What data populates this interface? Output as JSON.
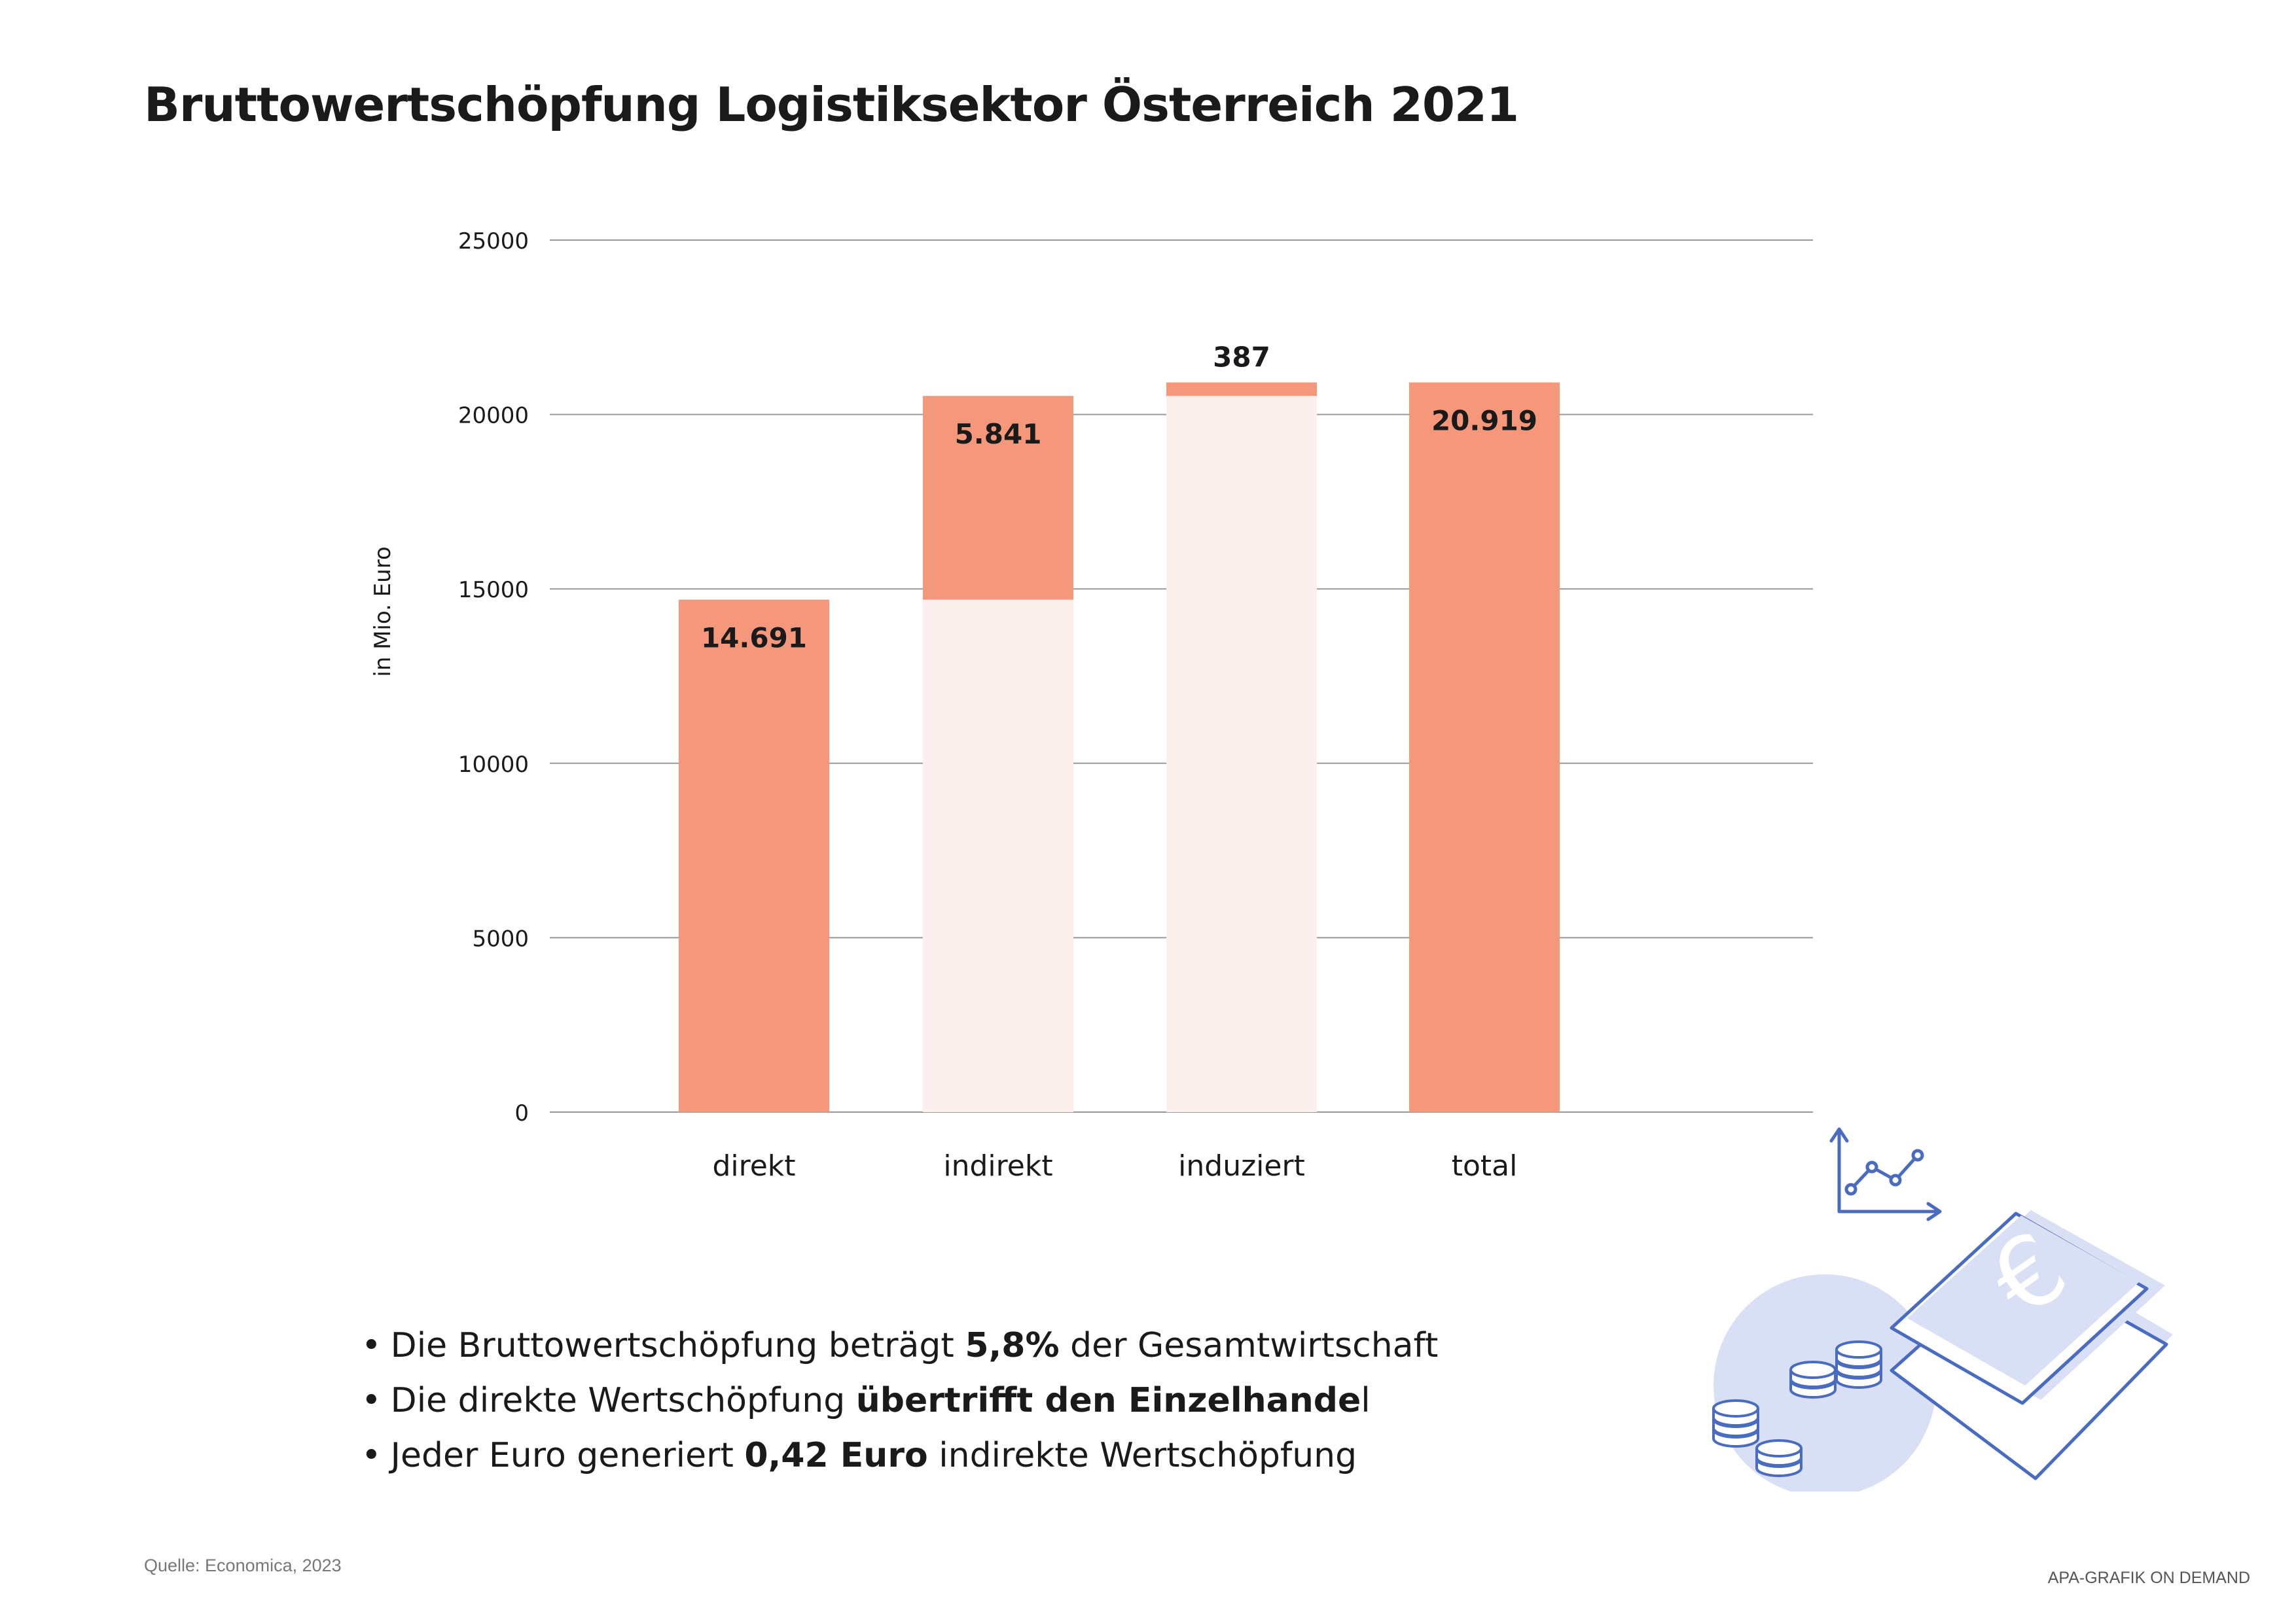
{
  "title": "Bruttowertschöpfung Logistiksektor Österreich 2021",
  "bullets": [
    {
      "before": "Die Bruttowertschöpfung beträgt ",
      "bold": "5,8%",
      "after": " der Gesamtwirtschaft"
    },
    {
      "before": "Die direkte Wertschöpfung ",
      "bold": "übertrifft den Einzelhande",
      "after": "l"
    },
    {
      "before": "Jeder Euro generiert ",
      "bold": "0,42 Euro",
      "after": " indirekte Wertschöpfung"
    }
  ],
  "source": "Quelle: Economica, 2023",
  "credit": "APA-GRAFIK ON DEMAND",
  "illustration_icons": [
    "line-graph-icon",
    "coins-icon",
    "euro-banknote-icon"
  ],
  "colors": {
    "bar": "#f4977b",
    "bar_base": "#fcf0ee",
    "grid": "#999999",
    "icon": "#4a6cc0",
    "icon_fill": "#d9dff4"
  },
  "chart_data": {
    "type": "bar",
    "subtype": "waterfall",
    "categories": [
      "direkt",
      "indirekt",
      "induziert",
      "total"
    ],
    "values": [
      14691,
      5841,
      387,
      20919
    ],
    "bases": [
      0,
      14691,
      20532,
      0
    ],
    "data_labels": [
      "14.691",
      "5.841",
      "387",
      "20.919"
    ],
    "ylabel": "in Mio. Euro",
    "xlabel": "",
    "ylim": [
      0,
      25000
    ],
    "yticks": [
      0,
      5000,
      10000,
      15000,
      20000,
      25000
    ],
    "grid": true
  }
}
